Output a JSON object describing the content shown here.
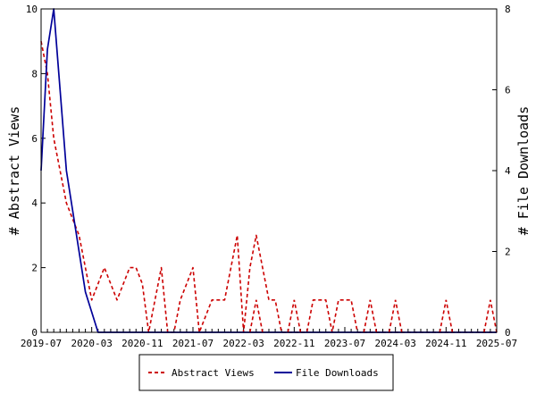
{
  "chart_data": {
    "type": "line",
    "y_left": {
      "label": "# Abstract Views",
      "lim": [
        0,
        10
      ],
      "ticks": [
        0,
        2,
        4,
        6,
        8,
        10
      ]
    },
    "y_right": {
      "label": "# File Downloads",
      "lim": [
        0,
        8
      ],
      "ticks": [
        0,
        2,
        4,
        6,
        8
      ]
    },
    "x_tick_labels": [
      "2019-07",
      "2020-03",
      "2020-11",
      "2021-07",
      "2022-03",
      "2022-11",
      "2023-07",
      "2024-03",
      "2024-11",
      "2025-07"
    ],
    "months": 73,
    "grid": false,
    "legend_position": "bottom",
    "series": [
      {
        "name": "Abstract Views",
        "axis": "left",
        "color": "#cc0000",
        "dash": true,
        "values": [
          9,
          8,
          6,
          5,
          4,
          3.5,
          3,
          2,
          1,
          1.5,
          2,
          1.5,
          1,
          1.5,
          2,
          2,
          1.5,
          0,
          1,
          2,
          0,
          0,
          1,
          1.5,
          2,
          0,
          0.5,
          1,
          1,
          1,
          2,
          3,
          0,
          2,
          3,
          2,
          1,
          1,
          0,
          0,
          0,
          0,
          0,
          1,
          1,
          1,
          0,
          1,
          1,
          1,
          0,
          0,
          0,
          0,
          0,
          0,
          0,
          0,
          0,
          0,
          0,
          0,
          0,
          0,
          0,
          0,
          0,
          0,
          0,
          0,
          0,
          0,
          0
        ]
      },
      {
        "name": "File Downloads",
        "axis": "right",
        "color": "#000099",
        "dash": false,
        "values": [
          4,
          7,
          8,
          6,
          4,
          3,
          2,
          1,
          0.5,
          0,
          0,
          0,
          0,
          0,
          0,
          0,
          0,
          0,
          0,
          0,
          0,
          0,
          0,
          0,
          0,
          0,
          0,
          0,
          0,
          0,
          0,
          0,
          0,
          0,
          0,
          0,
          0,
          0,
          0,
          0,
          0,
          0,
          0,
          0,
          0,
          0,
          0,
          0,
          0,
          0,
          0,
          0,
          0,
          0,
          0,
          0,
          0,
          0,
          0,
          0,
          0,
          0,
          0,
          0,
          0,
          0,
          0,
          0,
          0,
          0,
          0,
          0,
          0
        ]
      }
    ],
    "extra_points": [
      {
        "series": 0,
        "month": 34,
        "value": 1
      },
      {
        "series": 0,
        "month": 40,
        "value": 1
      },
      {
        "series": 0,
        "month": 52,
        "value": 1
      },
      {
        "series": 0,
        "month": 56,
        "value": 1
      },
      {
        "series": 0,
        "month": 64,
        "value": 1
      },
      {
        "series": 0,
        "month": 71,
        "value": 1
      }
    ]
  },
  "legend": {
    "abstract_views": "Abstract Views",
    "file_downloads": "File Downloads"
  }
}
